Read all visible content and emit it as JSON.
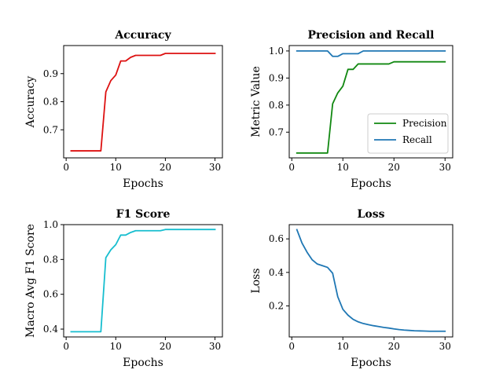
{
  "figure": {
    "background": "#ffffff"
  },
  "chart_data": [
    {
      "type": "line",
      "title": "Accuracy",
      "xlabel": "Epochs",
      "ylabel": "Accuracy",
      "xlim": [
        -0.5,
        31.5
      ],
      "ylim": [
        0.6,
        1.0
      ],
      "xticks": [
        0,
        10,
        20,
        30
      ],
      "yticks": [
        0.7,
        0.8,
        0.9
      ],
      "legend": null,
      "grid": false,
      "series": [
        {
          "color": "#dd1111",
          "x": [
            1,
            2,
            3,
            4,
            5,
            6,
            7,
            8,
            9,
            10,
            11,
            12,
            13,
            14,
            15,
            16,
            17,
            18,
            19,
            20,
            21,
            22,
            23,
            24,
            25,
            26,
            27,
            28,
            29,
            30
          ],
          "y": [
            0.625,
            0.625,
            0.625,
            0.625,
            0.625,
            0.625,
            0.625,
            0.835,
            0.875,
            0.895,
            0.945,
            0.945,
            0.958,
            0.965,
            0.965,
            0.965,
            0.965,
            0.965,
            0.965,
            0.972,
            0.972,
            0.972,
            0.972,
            0.972,
            0.972,
            0.972,
            0.972,
            0.972,
            0.972,
            0.972
          ]
        }
      ]
    },
    {
      "type": "line",
      "title": "Precision and Recall",
      "xlabel": "Epochs",
      "ylabel": "Metric Value",
      "xlim": [
        -0.5,
        31.5
      ],
      "ylim": [
        0.605,
        1.02
      ],
      "xticks": [
        0,
        10,
        20,
        30
      ],
      "yticks": [
        0.7,
        0.8,
        0.9,
        1.0
      ],
      "legend": "lower-right",
      "grid": false,
      "series": [
        {
          "name": "Precision",
          "color": "#118811",
          "x": [
            1,
            2,
            3,
            4,
            5,
            6,
            7,
            8,
            9,
            10,
            11,
            12,
            13,
            14,
            15,
            16,
            17,
            18,
            19,
            20,
            21,
            22,
            23,
            24,
            25,
            26,
            27,
            28,
            29,
            30
          ],
          "y": [
            0.623,
            0.623,
            0.623,
            0.623,
            0.623,
            0.623,
            0.623,
            0.805,
            0.845,
            0.87,
            0.932,
            0.932,
            0.952,
            0.952,
            0.952,
            0.952,
            0.952,
            0.952,
            0.952,
            0.96,
            0.96,
            0.96,
            0.96,
            0.96,
            0.96,
            0.96,
            0.96,
            0.96,
            0.96,
            0.96
          ]
        },
        {
          "name": "Recall",
          "color": "#1f77b4",
          "x": [
            1,
            2,
            3,
            4,
            5,
            6,
            7,
            8,
            9,
            10,
            11,
            12,
            13,
            14,
            15,
            16,
            17,
            18,
            19,
            20,
            21,
            22,
            23,
            24,
            25,
            26,
            27,
            28,
            29,
            30
          ],
          "y": [
            1.0,
            1.0,
            1.0,
            1.0,
            1.0,
            1.0,
            1.0,
            0.98,
            0.98,
            0.99,
            0.99,
            0.99,
            0.99,
            1.0,
            1.0,
            1.0,
            1.0,
            1.0,
            1.0,
            1.0,
            1.0,
            1.0,
            1.0,
            1.0,
            1.0,
            1.0,
            1.0,
            1.0,
            1.0,
            1.0
          ]
        }
      ]
    },
    {
      "type": "line",
      "title": "F1 Score",
      "xlabel": "Epochs",
      "ylabel": "Macro Avg F1 Score",
      "xlim": [
        -0.5,
        31.5
      ],
      "ylim": [
        0.355,
        1.0
      ],
      "xticks": [
        0,
        10,
        20,
        30
      ],
      "yticks": [
        0.4,
        0.6,
        0.8,
        1.0
      ],
      "legend": null,
      "grid": false,
      "series": [
        {
          "color": "#17becf",
          "x": [
            1,
            2,
            3,
            4,
            5,
            6,
            7,
            8,
            9,
            10,
            11,
            12,
            13,
            14,
            15,
            16,
            17,
            18,
            19,
            20,
            21,
            22,
            23,
            24,
            25,
            26,
            27,
            28,
            29,
            30
          ],
          "y": [
            0.385,
            0.385,
            0.385,
            0.385,
            0.385,
            0.385,
            0.385,
            0.81,
            0.855,
            0.885,
            0.94,
            0.94,
            0.955,
            0.965,
            0.965,
            0.965,
            0.965,
            0.965,
            0.965,
            0.972,
            0.972,
            0.972,
            0.972,
            0.972,
            0.972,
            0.972,
            0.972,
            0.972,
            0.972,
            0.972
          ]
        }
      ]
    },
    {
      "type": "line",
      "title": "Loss",
      "xlabel": "Epochs",
      "ylabel": "Loss",
      "xlim": [
        -0.5,
        31.5
      ],
      "ylim": [
        0.015,
        0.685
      ],
      "xticks": [
        0,
        10,
        20,
        30
      ],
      "yticks": [
        0.2,
        0.4,
        0.6
      ],
      "legend": null,
      "grid": false,
      "series": [
        {
          "color": "#1f77b4",
          "x": [
            1,
            2,
            3,
            4,
            5,
            6,
            7,
            8,
            9,
            10,
            11,
            12,
            13,
            14,
            15,
            16,
            17,
            18,
            19,
            20,
            21,
            22,
            23,
            24,
            25,
            26,
            27,
            28,
            29,
            30
          ],
          "y": [
            0.655,
            0.575,
            0.52,
            0.475,
            0.45,
            0.44,
            0.43,
            0.395,
            0.255,
            0.18,
            0.145,
            0.12,
            0.105,
            0.095,
            0.088,
            0.082,
            0.077,
            0.072,
            0.068,
            0.063,
            0.059,
            0.056,
            0.054,
            0.052,
            0.051,
            0.05,
            0.049,
            0.049,
            0.049,
            0.049
          ]
        }
      ]
    }
  ]
}
